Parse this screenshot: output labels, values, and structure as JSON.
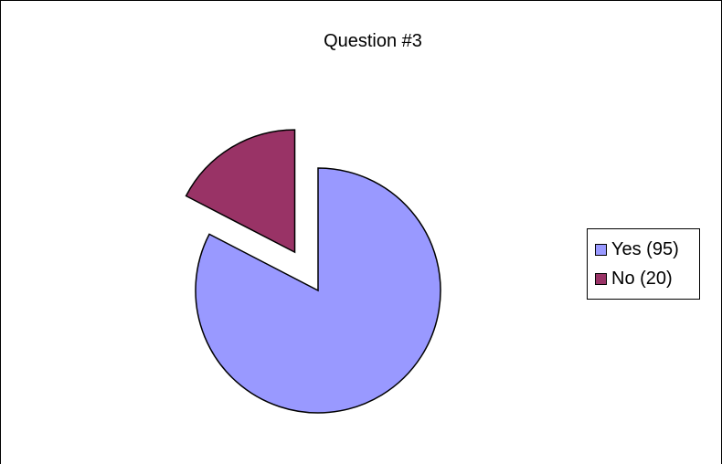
{
  "chart_data": {
    "type": "pie",
    "title": "Question #3",
    "slices": [
      {
        "label": "Yes (95)",
        "value": 95,
        "color": "#9999ff",
        "exploded": false
      },
      {
        "label": "No (20)",
        "value": 20,
        "color": "#993366",
        "exploded": true
      }
    ],
    "legend": {
      "position": "right"
    },
    "start_angle_deg": 0,
    "direction": "clockwise"
  }
}
